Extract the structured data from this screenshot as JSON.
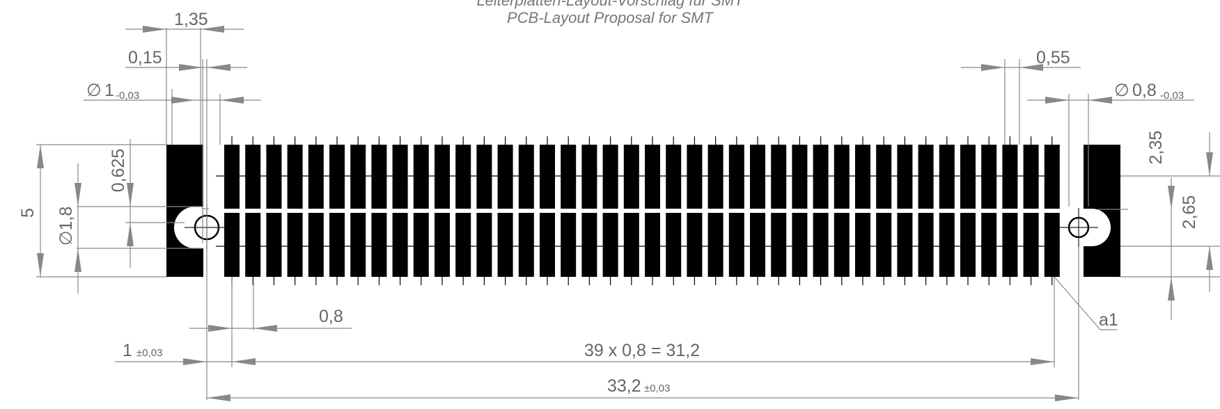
{
  "title": {
    "line1": "Leiterplatten-Layout-Vorschlag für SMT",
    "line2": "PCB-Layout Proposal for SMT"
  },
  "dimensions": {
    "d_1_35": "1,35",
    "d_0_15": "0,15",
    "hole_left_symbol": "∅",
    "hole_left_value": "1",
    "hole_left_tol": "-0,03",
    "d_0_55": "0,55",
    "hole_right_symbol": "∅",
    "hole_right_value": "0,8",
    "hole_right_tol": "-0,03",
    "d_0_625": "0,625",
    "d_5": "5",
    "d_1_8": "∅1,8",
    "d_2_35": "2,35",
    "d_2_65": "2,65",
    "d_0_8": "0,8",
    "d_1_value": "1",
    "d_1_tol": "±0,03",
    "d_pitch_total": "39 x 0,8 = 31,2",
    "d_33_2_value": "33,2",
    "d_33_2_tol": "±0,03",
    "label_a1": "a1"
  },
  "layout_info": {
    "pad_count_per_row": 40,
    "pad_rows": 2,
    "pitch_mm": 0.8
  }
}
